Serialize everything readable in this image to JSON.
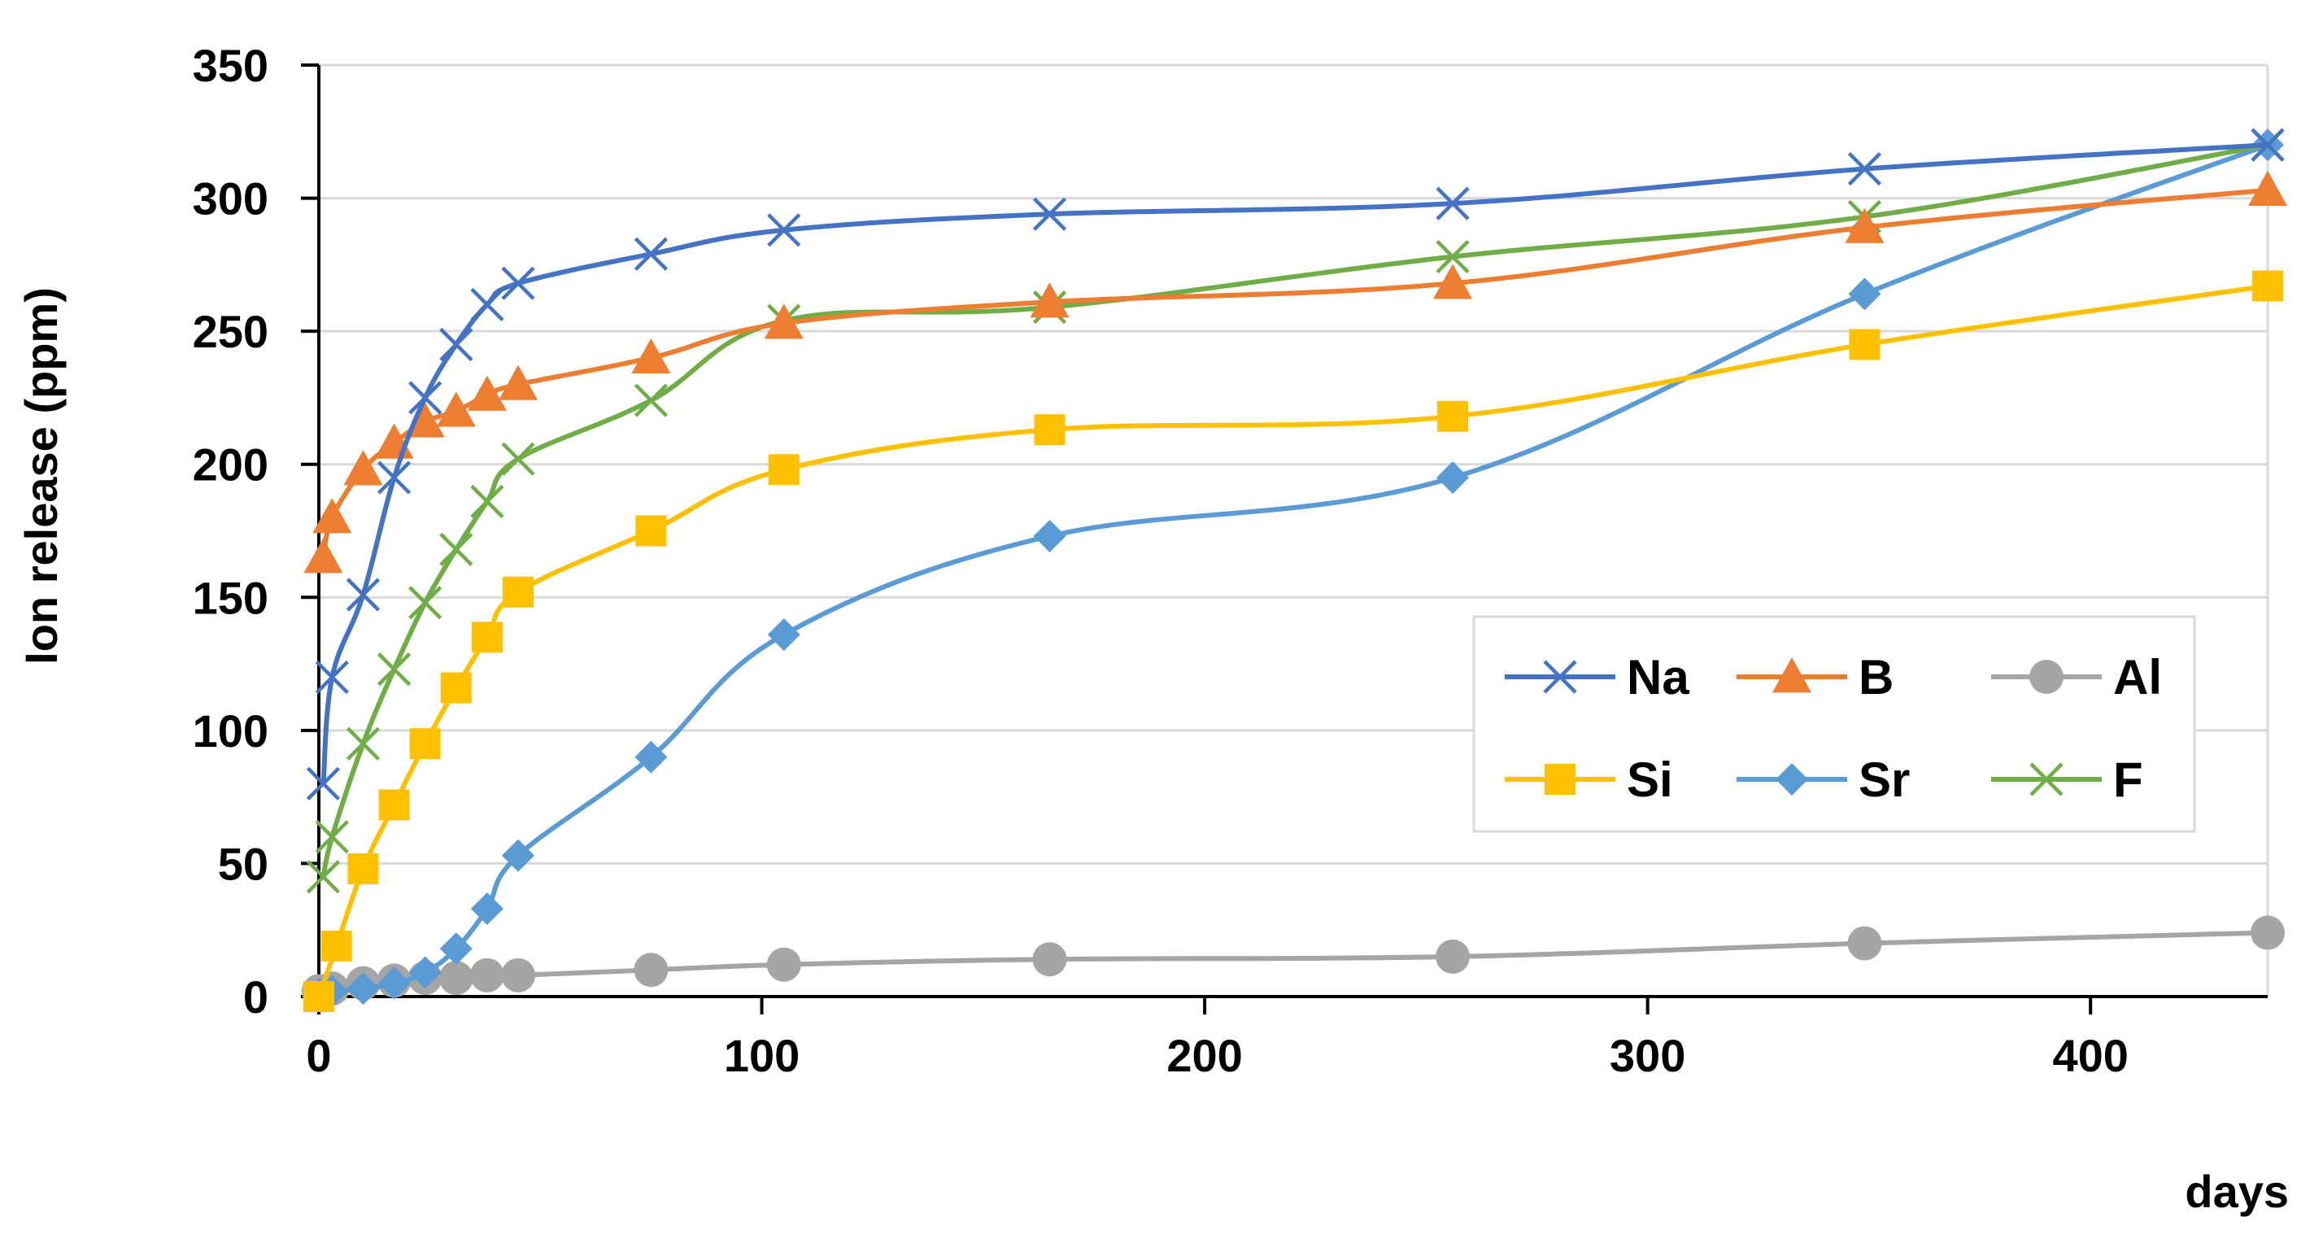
{
  "chart_data": {
    "type": "line",
    "title": "",
    "xlabel": "days",
    "ylabel": "Ion release (ppm)",
    "xlim": [
      0,
      440
    ],
    "ylim": [
      0,
      350
    ],
    "x_ticks": [
      0,
      100,
      200,
      300,
      400
    ],
    "y_ticks": [
      0,
      50,
      100,
      150,
      200,
      250,
      300,
      350
    ],
    "grid": "horizontal",
    "legend_position": "center-right",
    "series": [
      {
        "name": "Na",
        "color": "#4472C4",
        "marker": "x",
        "x": [
          1,
          3,
          10,
          17,
          24,
          31,
          38,
          45,
          75,
          105,
          165,
          256,
          349,
          440
        ],
        "y": [
          80,
          120,
          151,
          195,
          225,
          245,
          260,
          268,
          279,
          288,
          294,
          298,
          311,
          320
        ]
      },
      {
        "name": "B",
        "color": "#ED7D31",
        "marker": "triangle",
        "x": [
          1,
          3,
          10,
          17,
          24,
          31,
          38,
          45,
          75,
          105,
          165,
          256,
          349,
          440
        ],
        "y": [
          165,
          180,
          198,
          208,
          216,
          220,
          226,
          230,
          240,
          253,
          261,
          268,
          289,
          303
        ]
      },
      {
        "name": "Al",
        "color": "#A5A5A5",
        "marker": "circle",
        "x": [
          0,
          3,
          10,
          17,
          24,
          31,
          38,
          45,
          75,
          105,
          165,
          256,
          349,
          440
        ],
        "y": [
          2,
          3,
          5,
          6,
          7,
          7,
          8,
          8,
          10,
          12,
          14,
          15,
          20,
          24
        ]
      },
      {
        "name": "Si",
        "color": "#FFC000",
        "marker": "square",
        "x": [
          0,
          4,
          10,
          17,
          24,
          31,
          38,
          45,
          75,
          105,
          165,
          256,
          349,
          440
        ],
        "y": [
          0,
          19,
          48,
          72,
          95,
          116,
          135,
          152,
          175,
          198,
          213,
          218,
          245,
          267
        ]
      },
      {
        "name": "Sr",
        "color": "#5B9BD5",
        "marker": "diamond",
        "x": [
          0,
          3,
          10,
          17,
          24,
          31,
          38,
          45,
          75,
          105,
          165,
          256,
          349,
          440
        ],
        "y": [
          1,
          2,
          3,
          5,
          9,
          18,
          33,
          53,
          90,
          136,
          173,
          195,
          264,
          320
        ]
      },
      {
        "name": "F",
        "color": "#70AD47",
        "marker": "x",
        "x": [
          1,
          3,
          10,
          17,
          24,
          31,
          38,
          45,
          75,
          105,
          165,
          256,
          349,
          440
        ],
        "y": [
          45,
          60,
          95,
          123,
          148,
          168,
          186,
          202,
          224,
          254,
          259,
          278,
          293,
          320
        ]
      }
    ]
  }
}
